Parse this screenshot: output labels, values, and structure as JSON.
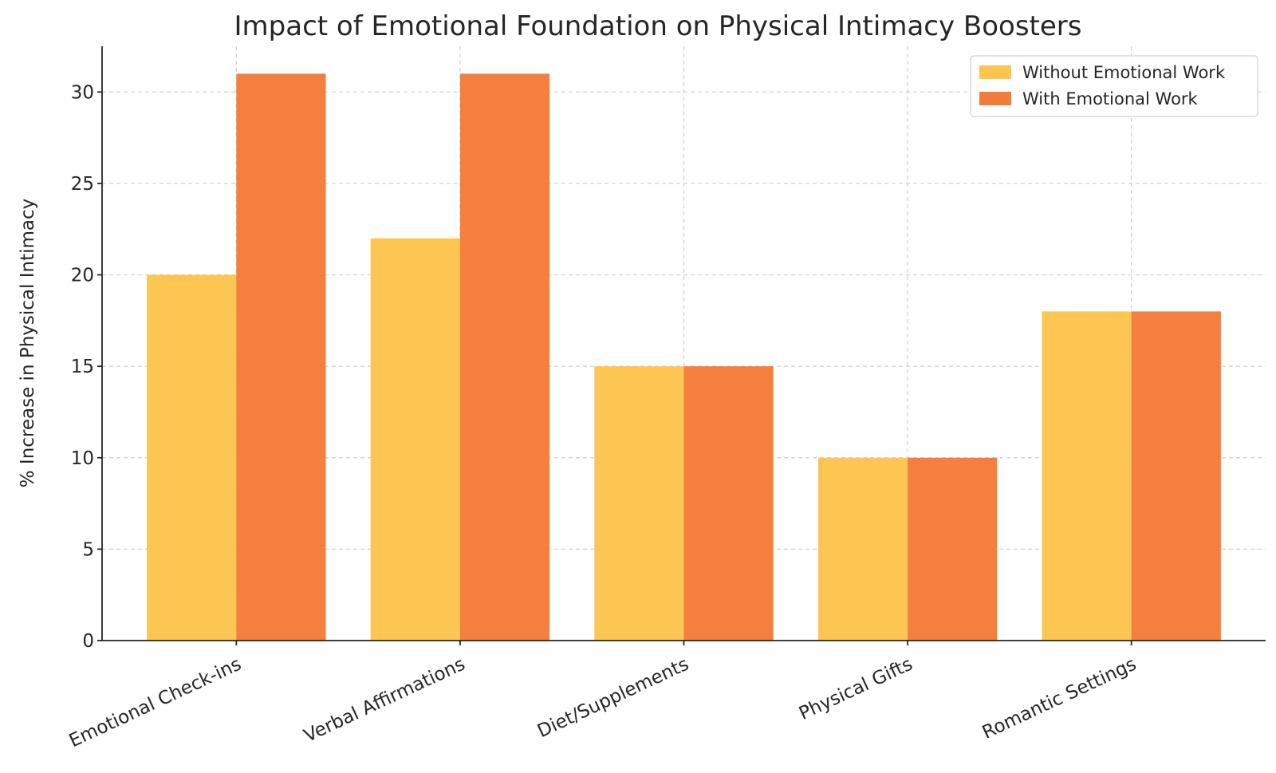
{
  "chart_data": {
    "type": "bar",
    "title": "Impact of Emotional Foundation on Physical Intimacy Boosters",
    "xlabel": "",
    "ylabel": "% Increase in Physical Intimacy",
    "categories": [
      "Emotional Check-ins",
      "Verbal Affirmations",
      "Diet/Supplements",
      "Physical Gifts",
      "Romantic Settings"
    ],
    "series": [
      {
        "name": "Without Emotional Work",
        "color": "#FDC54F",
        "values": [
          20,
          22,
          15,
          10,
          18
        ]
      },
      {
        "name": "With Emotional Work",
        "color": "#F47C3A",
        "values": [
          31,
          31,
          15,
          10,
          18
        ]
      }
    ],
    "ylim": [
      0,
      32.5
    ],
    "yticks": [
      0,
      5,
      10,
      15,
      20,
      25,
      30
    ],
    "grid": true,
    "legend_position": "top-right"
  }
}
